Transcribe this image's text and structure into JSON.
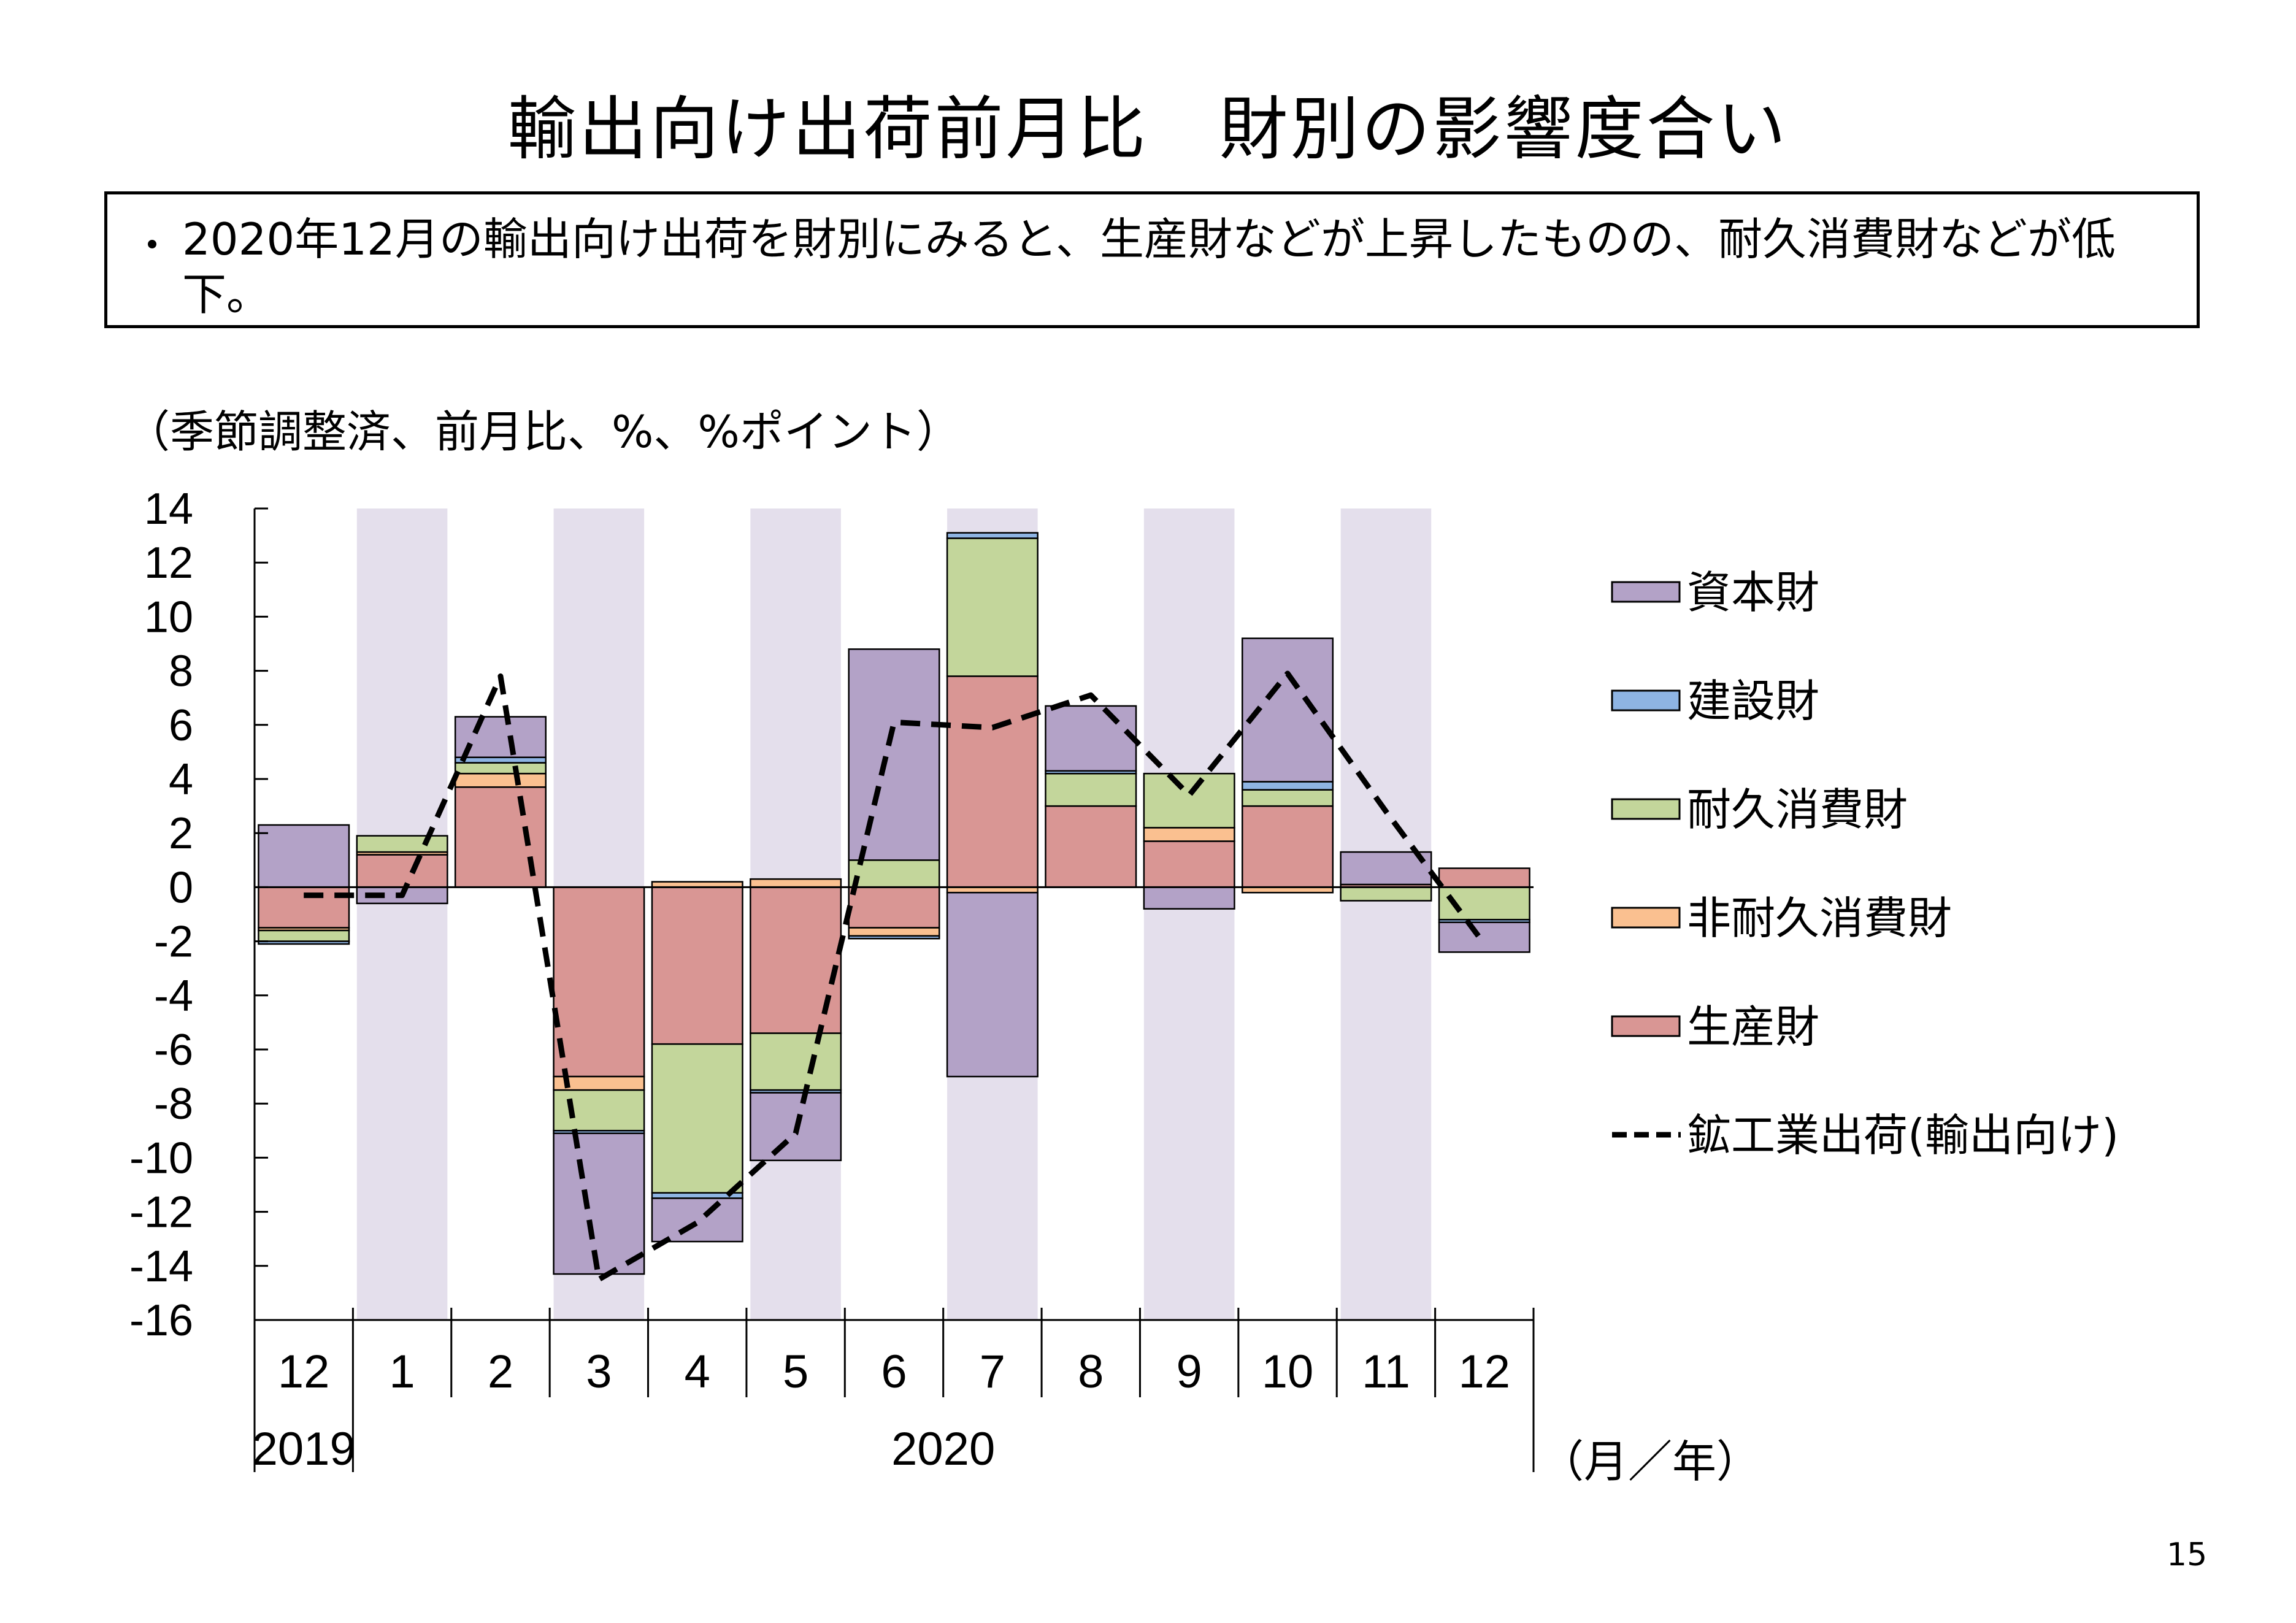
{
  "page": {
    "title": "輸出向け出荷前月比　財別の影響度合い",
    "bullet": "・",
    "summary": "2020年12月の輸出向け出荷を財別にみると、生産財などが上昇したものの、耐久消費財などが低下。",
    "unit_note": "（季節調整済、前月比、%、%ポイント）",
    "page_number": "15"
  },
  "chart_data": {
    "type": "bar",
    "stacked": true,
    "categories": [
      "12",
      "1",
      "2",
      "3",
      "4",
      "5",
      "6",
      "7",
      "8",
      "9",
      "10",
      "11",
      "12"
    ],
    "year_labels": [
      "2019",
      "2020"
    ],
    "x_unit_label": "（月／年）",
    "ylim": [
      -16,
      14
    ],
    "yticks": [
      14,
      12,
      10,
      8,
      6,
      4,
      2,
      0,
      -2,
      -4,
      -6,
      -8,
      -10,
      -12,
      -14,
      -16
    ],
    "shaded_columns": [
      1,
      3,
      5,
      7,
      9,
      11
    ],
    "shade_color": "#E4DFEC",
    "series": [
      {
        "name": "生産財",
        "color": "#D99694",
        "values": [
          -1.5,
          1.2,
          3.7,
          -7.0,
          -5.8,
          -5.4,
          -1.5,
          7.8,
          3.0,
          1.7,
          3.0,
          0.1,
          0.7
        ]
      },
      {
        "name": "非耐久消費財",
        "color": "#FAC090",
        "values": [
          -0.1,
          0.1,
          0.5,
          -0.5,
          0.2,
          0.3,
          -0.3,
          -0.2,
          0.0,
          0.5,
          -0.2,
          0.0,
          0.0
        ]
      },
      {
        "name": "耐久消費財",
        "color": "#C3D69B",
        "values": [
          -0.4,
          0.6,
          0.4,
          -1.5,
          -5.5,
          -2.1,
          1.0,
          5.1,
          1.2,
          2.0,
          0.6,
          -0.5,
          -1.2
        ]
      },
      {
        "name": "建設財",
        "color": "#8EB4E3",
        "values": [
          -0.1,
          0.0,
          0.2,
          -0.1,
          -0.2,
          -0.1,
          -0.1,
          0.2,
          0.1,
          0.0,
          0.3,
          0.0,
          -0.1
        ]
      },
      {
        "name": "資本財",
        "color": "#B3A2C7",
        "values": [
          2.3,
          -0.6,
          1.5,
          -5.2,
          -1.6,
          -2.5,
          7.8,
          -6.8,
          2.4,
          -0.8,
          5.3,
          1.2,
          -1.1
        ]
      }
    ],
    "line": {
      "name": "鉱工業出荷(輸出向け)",
      "style": "dashed",
      "color": "#000000",
      "values": [
        -0.3,
        -0.3,
        7.8,
        -14.5,
        -12.4,
        -9.1,
        6.1,
        5.9,
        7.1,
        3.4,
        7.9,
        2.8,
        -2.1
      ]
    },
    "legend_order": [
      "資本財",
      "建設財",
      "耐久消費財",
      "非耐久消費財",
      "生産財",
      "鉱工業出荷(輸出向け)"
    ],
    "legend_position": "right"
  }
}
